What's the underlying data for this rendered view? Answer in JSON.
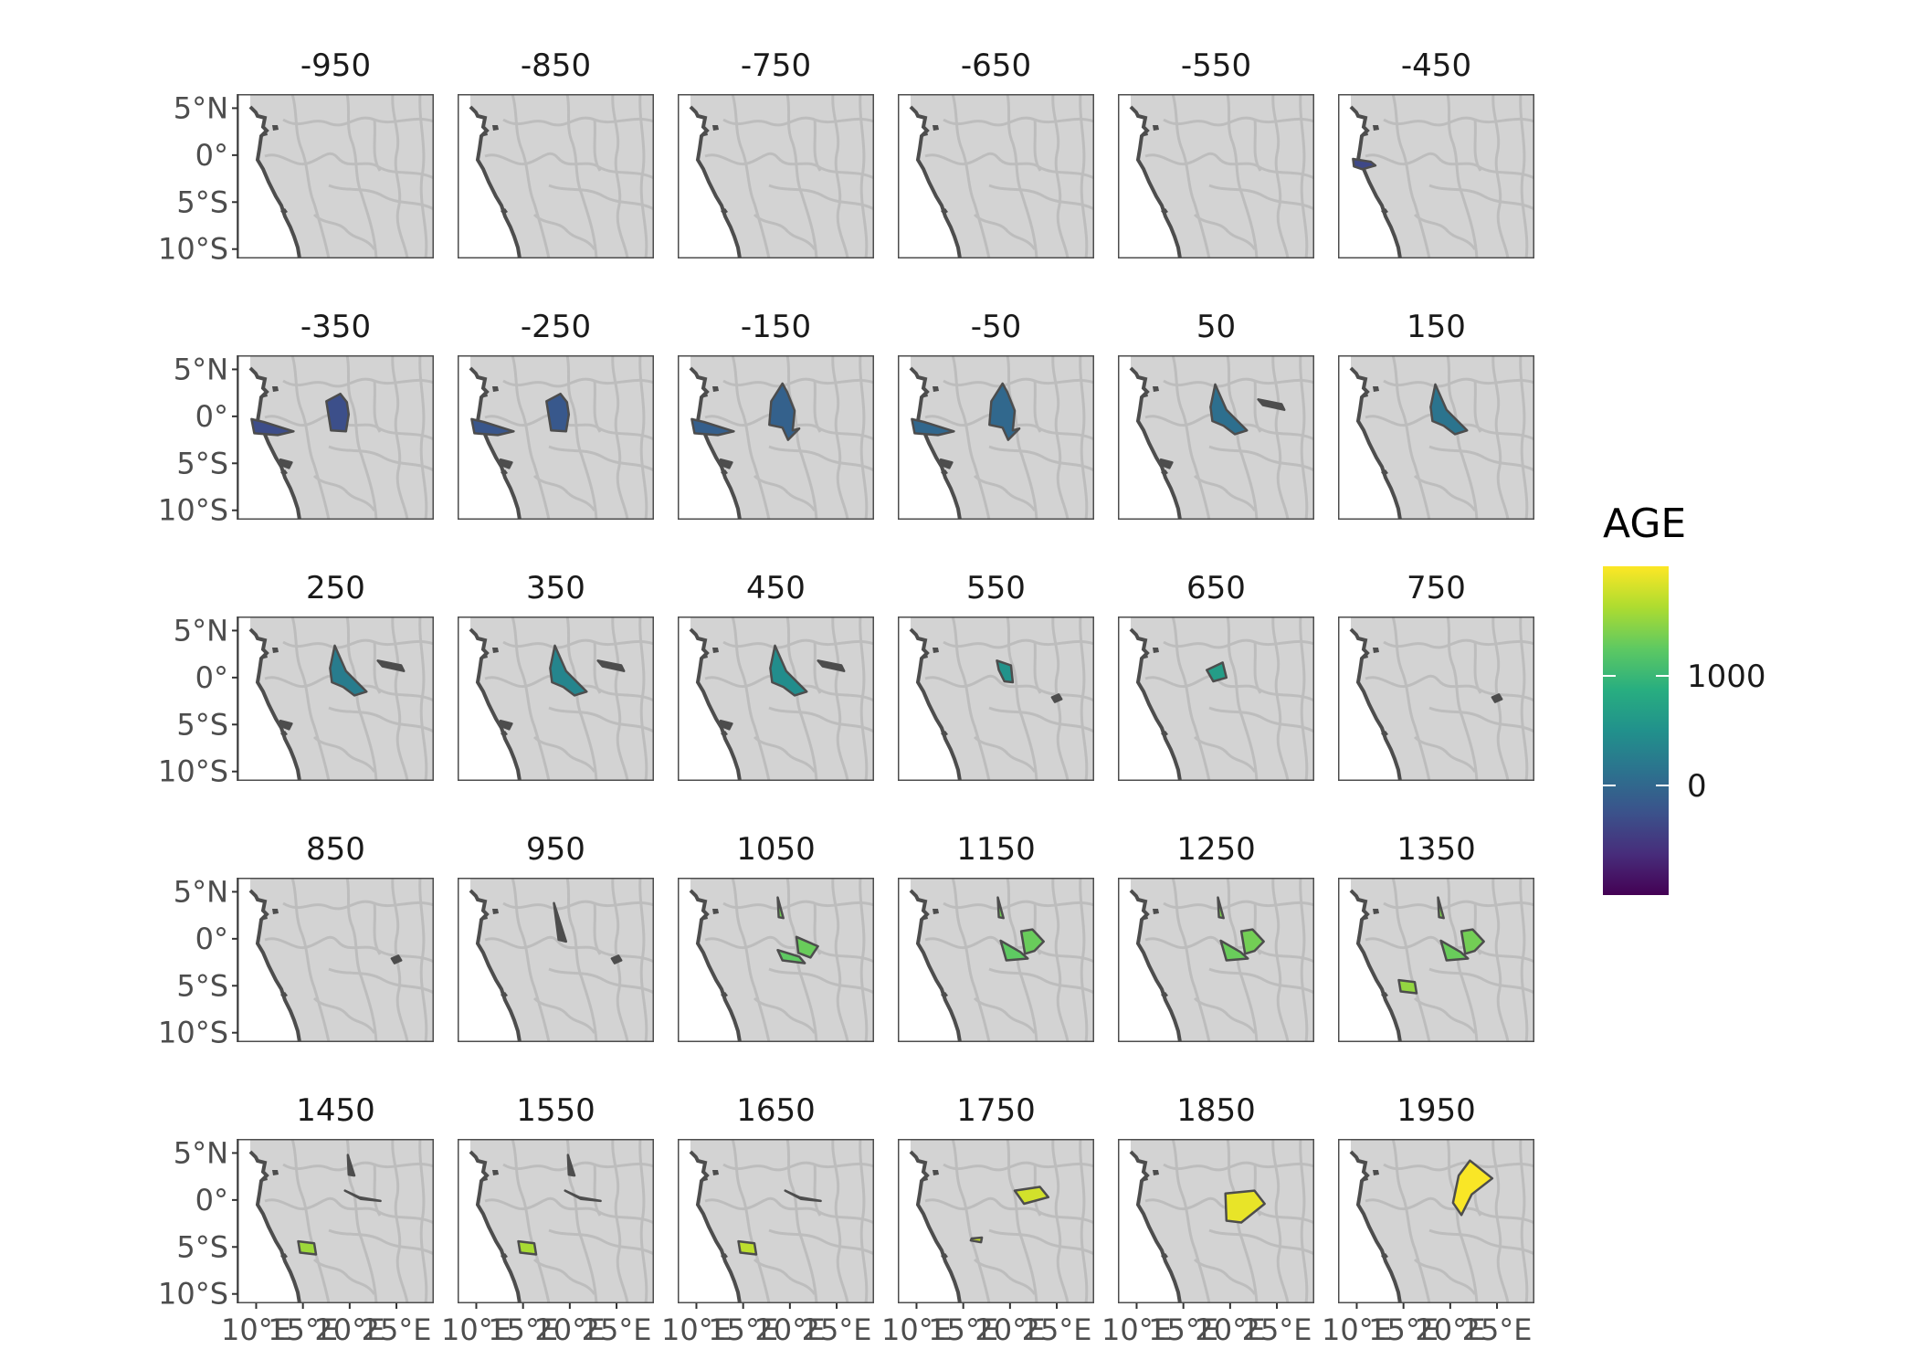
{
  "facets": [
    "-950",
    "-850",
    "-750",
    "-650",
    "-550",
    "-450",
    "-350",
    "-250",
    "-150",
    "-50",
    "50",
    "150",
    "250",
    "350",
    "450",
    "550",
    "650",
    "750",
    "850",
    "950",
    "1050",
    "1150",
    "1250",
    "1350",
    "1450",
    "1550",
    "1650",
    "1750",
    "1850",
    "1950"
  ],
  "y_axis_labels": [
    "5°N",
    "0°",
    "5°S",
    "10°S"
  ],
  "x_axis_labels": [
    "10°E",
    "15°E",
    "20°E",
    "25°E"
  ],
  "legend": {
    "title": "AGE",
    "tick_labels": [
      "1000",
      "0"
    ],
    "range": [
      -1000,
      2000
    ]
  },
  "colors": {
    "panel_fill": "#d3d3d3",
    "panel_border": "#4d4d4d",
    "river": "#bdbdbd",
    "ocean": "#ffffff",
    "outline": "#4d4d4d",
    "viridis": [
      "#440154",
      "#472d7b",
      "#3b528b",
      "#2c728e",
      "#21918c",
      "#28ae80",
      "#5ec962",
      "#addc30",
      "#fde725"
    ]
  },
  "map_data": {
    "extent": {
      "lon": [
        8,
        29
      ],
      "lat": [
        -11,
        6.5
      ]
    },
    "regions": {
      "R1": [
        [
          9.5,
          -0.3
        ],
        [
          10.8,
          -0.6
        ],
        [
          14,
          -1.6
        ],
        [
          12.3,
          -2
        ],
        [
          9.8,
          -1.8
        ]
      ],
      "R2": [
        [
          17.2,
          -0.3
        ],
        [
          17.6,
          -3.5
        ],
        [
          18.7,
          -5.0
        ],
        [
          19.4,
          -4.6
        ],
        [
          18.9,
          -1.8
        ],
        [
          17.9,
          -0.2
        ]
      ],
      "R3": [
        [
          13,
          -4.6
        ],
        [
          14.5,
          -4.4
        ],
        [
          14.8,
          -5.8
        ],
        [
          13.2,
          -5.9
        ]
      ],
      "R4": [
        [
          17.5,
          1.6
        ],
        [
          18,
          -1.5
        ],
        [
          19.6,
          -1.6
        ],
        [
          19.9,
          0.2
        ],
        [
          19.7,
          1.5
        ],
        [
          19,
          2.4
        ]
      ],
      "R5": [
        [
          18,
          1.6
        ],
        [
          19.2,
          3.5
        ],
        [
          19.7,
          2.6
        ],
        [
          20.5,
          0.6
        ],
        [
          20.3,
          -1.5
        ],
        [
          21,
          -1.3
        ],
        [
          19.8,
          -2.5
        ],
        [
          19.2,
          -1.2
        ],
        [
          17.8,
          -0.9
        ]
      ],
      "R6": [
        [
          23,
          1.8
        ],
        [
          25.5,
          1.3
        ],
        [
          25.8,
          0.7
        ],
        [
          23.5,
          1.2
        ]
      ],
      "R7": [
        [
          9.6,
          -0.4
        ],
        [
          11.5,
          -0.7
        ],
        [
          12,
          -1.1
        ],
        [
          10.6,
          -1.5
        ],
        [
          9.7,
          -1.2
        ]
      ],
      "R8": [
        [
          12.6,
          -4.6
        ],
        [
          13.8,
          -4.9
        ],
        [
          13.5,
          -5.5
        ],
        [
          12.5,
          -5.1
        ]
      ],
      "R9": [
        [
          18.4,
          3.4
        ],
        [
          19.6,
          0.7
        ],
        [
          20.8,
          -0.5
        ],
        [
          21.8,
          -1.5
        ],
        [
          20.5,
          -1.9
        ],
        [
          19.3,
          -1.0
        ],
        [
          18.1,
          -0.5
        ],
        [
          17.9,
          1.0
        ]
      ],
      "R10": [
        [
          24.5,
          -2.1
        ],
        [
          25.2,
          -1.8
        ],
        [
          25.5,
          -2.3
        ],
        [
          24.8,
          -2.6
        ]
      ],
      "R11": [
        [
          18.6,
          1.8
        ],
        [
          20.1,
          1.3
        ],
        [
          20.3,
          -0.5
        ],
        [
          19.4,
          -0.4
        ],
        [
          18.8,
          0.8
        ]
      ],
      "R12": [
        [
          17.5,
          0.8
        ],
        [
          19.2,
          1.6
        ],
        [
          19.6,
          0.0
        ],
        [
          18.2,
          -0.4
        ]
      ],
      "R13": [
        [
          18.3,
          3.8
        ],
        [
          19.6,
          -0.3
        ],
        [
          18.8,
          -0.1
        ]
      ],
      "R14": [
        [
          14.5,
          -4.4
        ],
        [
          16.2,
          -4.6
        ],
        [
          16.4,
          -5.8
        ],
        [
          14.7,
          -5.6
        ]
      ],
      "R15": [
        [
          19.8,
          4.8
        ],
        [
          20.5,
          2.6
        ],
        [
          19.9,
          2.7
        ]
      ],
      "R16": [
        [
          19.5,
          1.0
        ],
        [
          21.2,
          0.1
        ],
        [
          23.3,
          -0.1
        ],
        [
          21.0,
          0.3
        ]
      ],
      "R17": [
        [
          19.1,
          -0.5
        ],
        [
          22.0,
          0.6
        ],
        [
          23.6,
          -0.6
        ],
        [
          21.0,
          -1.8
        ],
        [
          20.6,
          -0.6
        ]
      ],
      "R18": [
        [
          18.7,
          -1.2
        ],
        [
          21.0,
          -1.9
        ],
        [
          21.6,
          -2.6
        ],
        [
          19.2,
          -2.3
        ]
      ],
      "R19": [
        [
          20.0,
          3.3
        ],
        [
          20.5,
          1.2
        ],
        [
          21.4,
          0.2
        ],
        [
          23.5,
          -0.4
        ],
        [
          21.5,
          -2.4
        ],
        [
          19.8,
          -1.6
        ],
        [
          19.2,
          0.3
        ]
      ],
      "R20": [
        [
          15.9,
          -4.1
        ],
        [
          17.0,
          -4.0
        ],
        [
          16.9,
          -4.5
        ],
        [
          15.8,
          -4.3
        ]
      ],
      "R21": [
        [
          18.7,
          4.4
        ],
        [
          19.3,
          2.2
        ],
        [
          18.8,
          2.3
        ]
      ],
      "R22": [
        [
          20.7,
          0.2
        ],
        [
          23.0,
          -0.8
        ],
        [
          22.2,
          -2.0
        ],
        [
          20.9,
          -1.5
        ]
      ],
      "R23": [
        [
          21.2,
          0.8
        ],
        [
          22.4,
          1.0
        ],
        [
          23.6,
          -0.3
        ],
        [
          22.6,
          -1.3
        ],
        [
          21.6,
          -1.6
        ]
      ],
      "R24": [
        [
          19.0,
          -0.2
        ],
        [
          21.1,
          -1.4
        ],
        [
          21.9,
          -2.1
        ],
        [
          19.6,
          -2.3
        ]
      ],
      "R25": [
        [
          20.5,
          1.0
        ],
        [
          23.2,
          1.4
        ],
        [
          24.1,
          0.3
        ],
        [
          21.5,
          -0.4
        ]
      ],
      "R26": [
        [
          19.5,
          0.7
        ],
        [
          22.6,
          1.0
        ],
        [
          23.7,
          -0.4
        ],
        [
          21.2,
          -2.4
        ],
        [
          19.6,
          -2.2
        ]
      ],
      "R27": [
        [
          20.9,
          2.6
        ],
        [
          22.1,
          4.2
        ],
        [
          24.5,
          2.3
        ],
        [
          22.3,
          0.6
        ],
        [
          21.2,
          -1.6
        ],
        [
          20.3,
          -0.3
        ]
      ]
    },
    "panels": {
      "-450": [
        [
          "R7",
          -350
        ]
      ],
      "-350": [
        [
          "R1",
          -300
        ],
        [
          "R4",
          -280
        ],
        [
          "R8",
          null
        ]
      ],
      "-250": [
        [
          "R1",
          -200
        ],
        [
          "R4",
          -180
        ],
        [
          "R8",
          null
        ]
      ],
      "-150": [
        [
          "R1",
          -100
        ],
        [
          "R5",
          -80
        ],
        [
          "R8",
          null
        ]
      ],
      "-50": [
        [
          "R1",
          0
        ],
        [
          "R5",
          10
        ],
        [
          "R8",
          null
        ]
      ],
      "50": [
        [
          "R9",
          90
        ],
        [
          "R6",
          null
        ],
        [
          "R8",
          null
        ]
      ],
      "150": [
        [
          "R9",
          150
        ]
      ],
      "250": [
        [
          "R9",
          250
        ],
        [
          "R6",
          null
        ],
        [
          "R8",
          null
        ]
      ],
      "350": [
        [
          "R9",
          350
        ],
        [
          "R6",
          null
        ],
        [
          "R8",
          null
        ]
      ],
      "450": [
        [
          "R9",
          450
        ],
        [
          "R6",
          null
        ],
        [
          "R8",
          null
        ]
      ],
      "550": [
        [
          "R11",
          530
        ],
        [
          "R10",
          null
        ]
      ],
      "650": [
        [
          "R12",
          650
        ]
      ],
      "750": [
        [
          "R10",
          null
        ]
      ],
      "850": [
        [
          "R10",
          null
        ]
      ],
      "950": [
        [
          "R13",
          null
        ],
        [
          "R10",
          null
        ]
      ],
      "1050": [
        [
          "R21",
          1350
        ],
        [
          "R22",
          1300
        ],
        [
          "R18",
          1250
        ]
      ],
      "1150": [
        [
          "R21",
          1350
        ],
        [
          "R23",
          1300
        ],
        [
          "R24",
          1250
        ]
      ],
      "1250": [
        [
          "R21",
          1400
        ],
        [
          "R23",
          1350
        ],
        [
          "R24",
          1300
        ]
      ],
      "1350": [
        [
          "R21",
          1400
        ],
        [
          "R23",
          1350
        ],
        [
          "R24",
          1300
        ],
        [
          "R14",
          1500
        ]
      ],
      "1450": [
        [
          "R15",
          null
        ],
        [
          "R16",
          1500
        ],
        [
          "R14",
          1550
        ]
      ],
      "1550": [
        [
          "R15",
          null
        ],
        [
          "R16",
          1600
        ],
        [
          "R14",
          1600
        ]
      ],
      "1650": [
        [
          "R16",
          1750
        ],
        [
          "R14",
          1700
        ]
      ],
      "1750": [
        [
          "R25",
          1800
        ],
        [
          "R20",
          1750
        ]
      ],
      "1850": [
        [
          "R26",
          1900
        ]
      ],
      "1950": [
        [
          "R27",
          1980
        ]
      ]
    }
  }
}
